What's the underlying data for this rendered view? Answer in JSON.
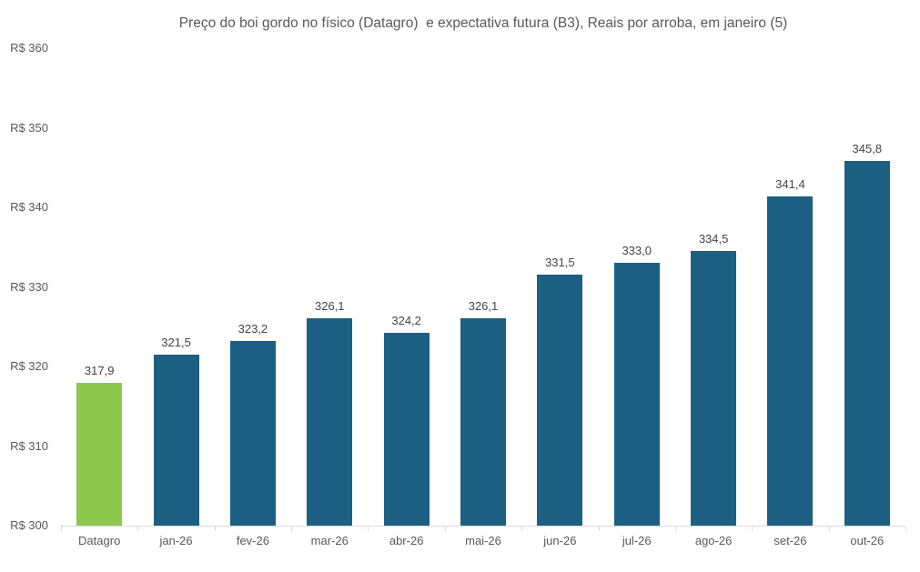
{
  "chart_data": {
    "type": "bar",
    "title": "Preço do boi gordo no físico (Datagro)  e expectativa futura (B3), Reais por arroba, em janeiro (5)",
    "categories": [
      "Datagro",
      "jan-26",
      "fev-26",
      "mar-26",
      "abr-26",
      "mai-26",
      "jun-26",
      "jul-26",
      "ago-26",
      "set-26",
      "out-26"
    ],
    "values": [
      317.9,
      321.5,
      323.2,
      326.1,
      324.2,
      326.1,
      331.5,
      333.0,
      334.5,
      341.4,
      345.8
    ],
    "labels": [
      "317,9",
      "321,5",
      "323,2",
      "326,1",
      "324,2",
      "326,1",
      "331,5",
      "333,0",
      "334,5",
      "341,4",
      "345,8"
    ],
    "xlabel": "",
    "ylabel": "",
    "ylim": [
      300,
      360
    ],
    "ytick_step": 10,
    "ytick_labels": [
      "R$ 300",
      "R$ 310",
      "R$ 320",
      "R$ 330",
      "R$ 340",
      "R$ 350",
      "R$ 360"
    ],
    "grid": false,
    "legend": false,
    "highlight_index": 0,
    "colors": {
      "highlight_bar": "#8dc74d",
      "default_bar": "#1c5f82",
      "axis_line": "#d9d9d9",
      "title_text": "#595959",
      "tick_text": "#595959",
      "value_label_text": "#444444"
    }
  }
}
